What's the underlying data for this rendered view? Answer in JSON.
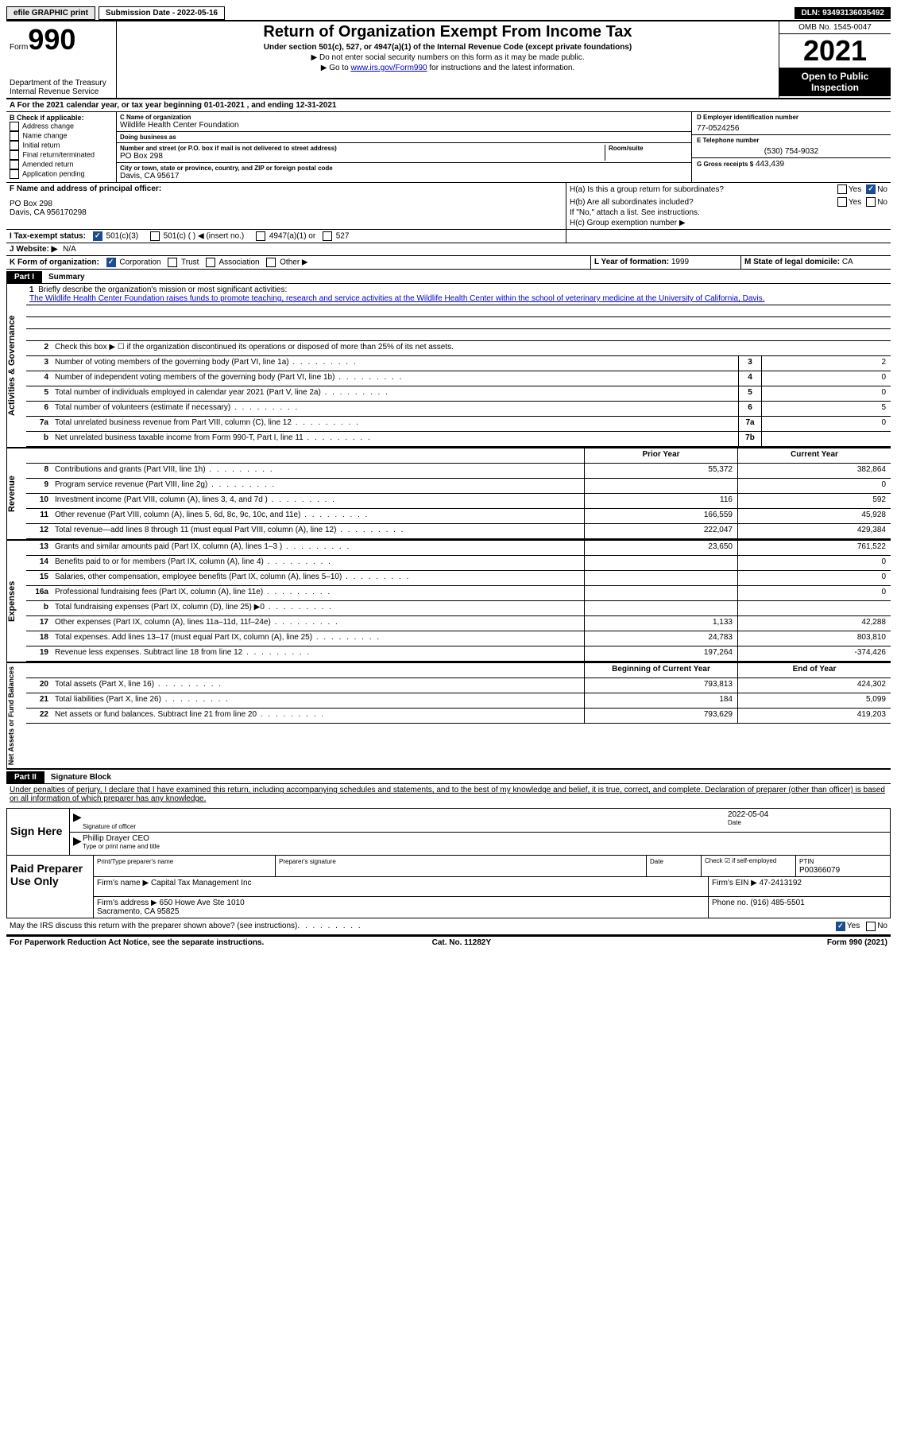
{
  "topbar": {
    "efile": "efile GRAPHIC print",
    "submission": "Submission Date - 2022-05-16",
    "dln": "DLN: 93493136035492"
  },
  "header": {
    "form_word": "Form",
    "form_num": "990",
    "dept": "Department of the Treasury",
    "irs": "Internal Revenue Service",
    "title": "Return of Organization Exempt From Income Tax",
    "sub1": "Under section 501(c), 527, or 4947(a)(1) of the Internal Revenue Code (except private foundations)",
    "sub2": "▶ Do not enter social security numbers on this form as it may be made public.",
    "sub3_pre": "▶ Go to ",
    "sub3_link": "www.irs.gov/Form990",
    "sub3_post": " for instructions and the latest information.",
    "omb": "OMB No. 1545-0047",
    "year": "2021",
    "open": "Open to Public Inspection"
  },
  "row_a": "A For the 2021 calendar year, or tax year beginning 01-01-2021  , and ending 12-31-2021",
  "col_b": {
    "label": "B Check if applicable:",
    "items": [
      "Address change",
      "Name change",
      "Initial return",
      "Final return/terminated",
      "Amended return",
      "Application pending"
    ]
  },
  "col_c": {
    "name_lbl": "C Name of organization",
    "name": "Wildlife Health Center Foundation",
    "dba_lbl": "Doing business as",
    "dba": "",
    "addr_lbl": "Number and street (or P.O. box if mail is not delivered to street address)",
    "room_lbl": "Room/suite",
    "addr": "PO Box 298",
    "city_lbl": "City or town, state or province, country, and ZIP or foreign postal code",
    "city": "Davis, CA  95617"
  },
  "col_d": {
    "ein_lbl": "D Employer identification number",
    "ein": "77-0524256",
    "tel_lbl": "E Telephone number",
    "tel": "(530) 754-9032",
    "gross_lbl": "G Gross receipts $",
    "gross": "443,439"
  },
  "fgj": {
    "f_lbl": "F Name and address of principal officer:",
    "f_addr": "PO Box 298\nDavis, CA  956170298",
    "ha": "H(a)  Is this a group return for subordinates?",
    "hb": "H(b)  Are all subordinates included?",
    "hb_note": "If \"No,\" attach a list. See instructions.",
    "hc": "H(c)  Group exemption number ▶",
    "i": "I  Tax-exempt status:",
    "i_501c3": "501(c)(3)",
    "i_501c": "501(c) (  ) ◀ (insert no.)",
    "i_4947": "4947(a)(1) or",
    "i_527": "527",
    "j": "J  Website: ▶",
    "j_val": "N/A",
    "k": "K Form of organization:",
    "k_corp": "Corporation",
    "k_trust": "Trust",
    "k_assoc": "Association",
    "k_other": "Other ▶",
    "l": "L Year of formation:",
    "l_val": "1999",
    "m": "M State of legal domicile:",
    "m_val": "CA",
    "yes": "Yes",
    "no": "No"
  },
  "part1": {
    "tag": "Part I",
    "title": "Summary",
    "tab1": "Activities & Governance",
    "tab2": "Revenue",
    "tab3": "Expenses",
    "tab4": "Net Assets or Fund Balances",
    "line1_lbl": "Briefly describe the organization's mission or most significant activities:",
    "line1_txt": "The Wildlife Health Center Foundation raises funds to promote teaching, research and service activities at the Wildlife Health Center within the school of veterinary medicine at the University of California, Davis.",
    "line2": "Check this box ▶ ☐ if the organization discontinued its operations or disposed of more than 25% of its net assets.",
    "lines_gov": [
      {
        "n": "3",
        "d": "Number of voting members of the governing body (Part VI, line 1a)",
        "b": "3",
        "v": "2"
      },
      {
        "n": "4",
        "d": "Number of independent voting members of the governing body (Part VI, line 1b)",
        "b": "4",
        "v": "0"
      },
      {
        "n": "5",
        "d": "Total number of individuals employed in calendar year 2021 (Part V, line 2a)",
        "b": "5",
        "v": "0"
      },
      {
        "n": "6",
        "d": "Total number of volunteers (estimate if necessary)",
        "b": "6",
        "v": "5"
      },
      {
        "n": "7a",
        "d": "Total unrelated business revenue from Part VIII, column (C), line 12",
        "b": "7a",
        "v": "0"
      },
      {
        "n": "b",
        "d": "Net unrelated business taxable income from Form 990-T, Part I, line 11",
        "b": "7b",
        "v": ""
      }
    ],
    "hdr_prior": "Prior Year",
    "hdr_curr": "Current Year",
    "lines_rev": [
      {
        "n": "8",
        "d": "Contributions and grants (Part VIII, line 1h)",
        "p": "55,372",
        "c": "382,864"
      },
      {
        "n": "9",
        "d": "Program service revenue (Part VIII, line 2g)",
        "p": "",
        "c": "0"
      },
      {
        "n": "10",
        "d": "Investment income (Part VIII, column (A), lines 3, 4, and 7d )",
        "p": "116",
        "c": "592"
      },
      {
        "n": "11",
        "d": "Other revenue (Part VIII, column (A), lines 5, 6d, 8c, 9c, 10c, and 11e)",
        "p": "166,559",
        "c": "45,928"
      },
      {
        "n": "12",
        "d": "Total revenue—add lines 8 through 11 (must equal Part VIII, column (A), line 12)",
        "p": "222,047",
        "c": "429,384"
      }
    ],
    "lines_exp": [
      {
        "n": "13",
        "d": "Grants and similar amounts paid (Part IX, column (A), lines 1–3 )",
        "p": "23,650",
        "c": "761,522"
      },
      {
        "n": "14",
        "d": "Benefits paid to or for members (Part IX, column (A), line 4)",
        "p": "",
        "c": "0"
      },
      {
        "n": "15",
        "d": "Salaries, other compensation, employee benefits (Part IX, column (A), lines 5–10)",
        "p": "",
        "c": "0"
      },
      {
        "n": "16a",
        "d": "Professional fundraising fees (Part IX, column (A), line 11e)",
        "p": "",
        "c": "0"
      },
      {
        "n": "b",
        "d": "Total fundraising expenses (Part IX, column (D), line 25) ▶0",
        "p": "shade",
        "c": "shade"
      },
      {
        "n": "17",
        "d": "Other expenses (Part IX, column (A), lines 11a–11d, 11f–24e)",
        "p": "1,133",
        "c": "42,288"
      },
      {
        "n": "18",
        "d": "Total expenses. Add lines 13–17 (must equal Part IX, column (A), line 25)",
        "p": "24,783",
        "c": "803,810"
      },
      {
        "n": "19",
        "d": "Revenue less expenses. Subtract line 18 from line 12",
        "p": "197,264",
        "c": "-374,426"
      }
    ],
    "hdr_beg": "Beginning of Current Year",
    "hdr_end": "End of Year",
    "lines_net": [
      {
        "n": "20",
        "d": "Total assets (Part X, line 16)",
        "p": "793,813",
        "c": "424,302"
      },
      {
        "n": "21",
        "d": "Total liabilities (Part X, line 26)",
        "p": "184",
        "c": "5,099"
      },
      {
        "n": "22",
        "d": "Net assets or fund balances. Subtract line 21 from line 20",
        "p": "793,629",
        "c": "419,203"
      }
    ]
  },
  "part2": {
    "tag": "Part II",
    "title": "Signature Block",
    "decl": "Under penalties of perjury, I declare that I have examined this return, including accompanying schedules and statements, and to the best of my knowledge and belief, it is true, correct, and complete. Declaration of preparer (other than officer) is based on all information of which preparer has any knowledge.",
    "sign_here": "Sign Here",
    "sig_officer": "Signature of officer",
    "sig_date": "2022-05-04",
    "date_lbl": "Date",
    "name_title": "Phillip Drayer CEO",
    "name_lbl": "Type or print name and title",
    "paid": "Paid Preparer Use Only",
    "prep_name_lbl": "Print/Type preparer's name",
    "prep_sig_lbl": "Preparer's signature",
    "prep_date_lbl": "Date",
    "check_lbl": "Check ☑ if self-employed",
    "ptin_lbl": "PTIN",
    "ptin": "P00366079",
    "firm_name_lbl": "Firm's name    ▶",
    "firm_name": "Capital Tax Management Inc",
    "firm_ein_lbl": "Firm's EIN ▶",
    "firm_ein": "47-2413192",
    "firm_addr_lbl": "Firm's address ▶",
    "firm_addr": "650 Howe Ave Ste 1010\nSacramento, CA  95825",
    "phone_lbl": "Phone no.",
    "phone": "(916) 485-5501",
    "discuss": "May the IRS discuss this return with the preparer shown above? (see instructions)"
  },
  "footer": {
    "left": "For Paperwork Reduction Act Notice, see the separate instructions.",
    "mid": "Cat. No. 11282Y",
    "right": "Form 990 (2021)"
  }
}
